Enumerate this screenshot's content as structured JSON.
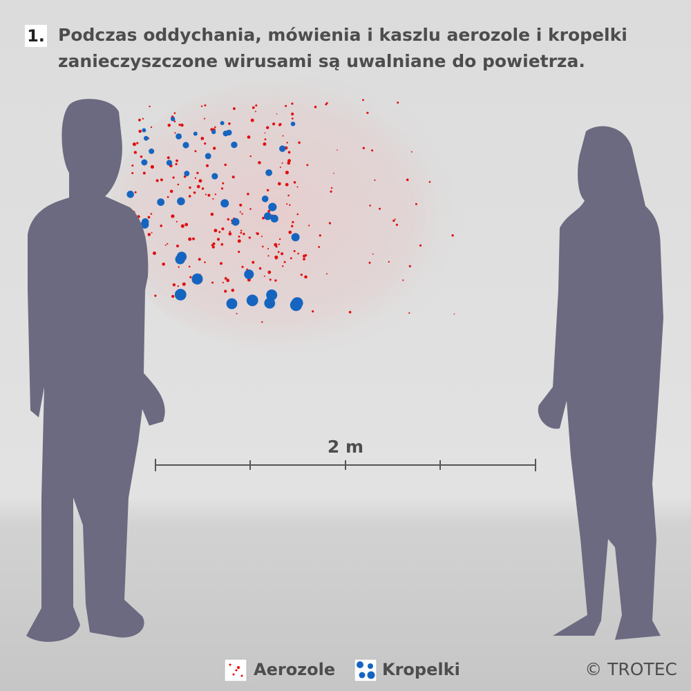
{
  "step": "1.",
  "title": [
    "Podczas oddychania, mówienia i kaszlu aerozole i kropelki",
    "zanieczyszczone wirusami są uwalniane do powietrza."
  ],
  "distance_label": "2 m",
  "legend": [
    "Aerozole",
    "Kropelki"
  ],
  "copyright": "© TROTEC"
}
